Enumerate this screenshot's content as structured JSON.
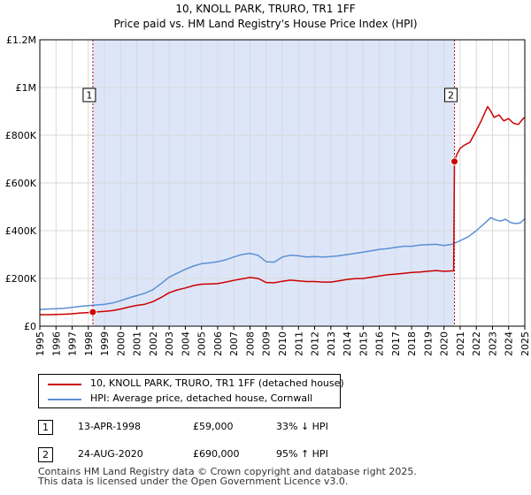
{
  "title_line1": "10, KNOLL PARK, TRURO, TR1 1FF",
  "title_line2": "Price paid vs. HM Land Registry's House Price Index (HPI)",
  "colors": {
    "property": "#cc0000",
    "hpi": "#5b8fd6",
    "shade": "#dde6f8",
    "marker_line": "#cc0000"
  },
  "chart_data": {
    "type": "line",
    "xlim": [
      1995,
      2025
    ],
    "ylim": [
      0,
      1200000
    ],
    "y_ticks": [
      {
        "value": 0,
        "label": "£0"
      },
      {
        "value": 200000,
        "label": "£200K"
      },
      {
        "value": 400000,
        "label": "£400K"
      },
      {
        "value": 600000,
        "label": "£600K"
      },
      {
        "value": 800000,
        "label": "£800K"
      },
      {
        "value": 1000000,
        "label": "£1M"
      },
      {
        "value": 1200000,
        "label": "£1.2M"
      }
    ],
    "x_ticks": [
      "1995",
      "1996",
      "1997",
      "1998",
      "1999",
      "2000",
      "2001",
      "2002",
      "2003",
      "2004",
      "2005",
      "2006",
      "2007",
      "2008",
      "2009",
      "2010",
      "2011",
      "2012",
      "2013",
      "2014",
      "2015",
      "2016",
      "2017",
      "2018",
      "2019",
      "2020",
      "2021",
      "2022",
      "2023",
      "2024",
      "2025"
    ],
    "shaded_range": [
      1998.28,
      2020.65
    ],
    "series": [
      {
        "name": "10, KNOLL PARK, TRURO, TR1 1FF (detached house)",
        "x": [
          1995.0,
          1995.5,
          1996.0,
          1996.5,
          1997.0,
          1997.5,
          1998.0,
          1998.28,
          1998.6,
          1999.0,
          1999.5,
          2000.0,
          2000.5,
          2001.0,
          2001.5,
          2002.0,
          2002.5,
          2003.0,
          2003.5,
          2004.0,
          2004.5,
          2005.0,
          2005.5,
          2006.0,
          2006.5,
          2007.0,
          2007.5,
          2008.0,
          2008.5,
          2009.0,
          2009.5,
          2010.0,
          2010.5,
          2011.0,
          2011.5,
          2012.0,
          2012.5,
          2013.0,
          2013.5,
          2014.0,
          2014.5,
          2015.0,
          2015.5,
          2016.0,
          2016.5,
          2017.0,
          2017.5,
          2018.0,
          2018.5,
          2019.0,
          2019.5,
          2020.0,
          2020.6,
          2020.65,
          2020.8,
          2021.0,
          2021.3,
          2021.6,
          2022.0,
          2022.3,
          2022.5,
          2022.7,
          2022.9,
          2023.1,
          2023.4,
          2023.7,
          2024.0,
          2024.3,
          2024.6,
          2024.9,
          2025.0
        ],
        "values": [
          48000,
          48000,
          49000,
          50000,
          52000,
          55000,
          57000,
          59000,
          60000,
          62000,
          65000,
          72000,
          80000,
          87000,
          92000,
          103000,
          120000,
          140000,
          152000,
          160000,
          170000,
          176000,
          177000,
          178000,
          185000,
          192000,
          198000,
          204000,
          200000,
          183000,
          182000,
          188000,
          193000,
          190000,
          187000,
          187000,
          185000,
          185000,
          190000,
          196000,
          199000,
          200000,
          205000,
          210000,
          215000,
          218000,
          221000,
          225000,
          227000,
          230000,
          233000,
          230000,
          232000,
          690000,
          720000,
          745000,
          760000,
          770000,
          820000,
          860000,
          890000,
          920000,
          900000,
          875000,
          885000,
          860000,
          870000,
          850000,
          845000,
          870000,
          875000
        ]
      },
      {
        "name": "HPI: Average price, detached house, Cornwall",
        "x": [
          1995.0,
          1995.5,
          1996.0,
          1996.5,
          1997.0,
          1997.5,
          1998.0,
          1998.5,
          1999.0,
          1999.5,
          2000.0,
          2000.5,
          2001.0,
          2001.5,
          2002.0,
          2002.5,
          2003.0,
          2003.5,
          2004.0,
          2004.5,
          2005.0,
          2005.5,
          2006.0,
          2006.5,
          2007.0,
          2007.5,
          2008.0,
          2008.5,
          2009.0,
          2009.5,
          2010.0,
          2010.5,
          2011.0,
          2011.5,
          2012.0,
          2012.5,
          2013.0,
          2013.5,
          2014.0,
          2014.5,
          2015.0,
          2015.5,
          2016.0,
          2016.5,
          2017.0,
          2017.5,
          2018.0,
          2018.5,
          2019.0,
          2019.5,
          2020.0,
          2020.5,
          2021.0,
          2021.5,
          2022.0,
          2022.5,
          2022.9,
          2023.2,
          2023.5,
          2023.8,
          2024.1,
          2024.4,
          2024.7,
          2025.0
        ],
        "values": [
          70000,
          72000,
          73000,
          75000,
          79000,
          83000,
          86000,
          89000,
          92000,
          97000,
          107000,
          118000,
          128000,
          138000,
          153000,
          178000,
          205000,
          222000,
          238000,
          252000,
          262000,
          265000,
          270000,
          278000,
          290000,
          300000,
          305000,
          297000,
          270000,
          268000,
          290000,
          297000,
          295000,
          290000,
          292000,
          290000,
          292000,
          295000,
          300000,
          305000,
          310000,
          316000,
          322000,
          325000,
          330000,
          335000,
          335000,
          340000,
          342000,
          343000,
          338000,
          343000,
          358000,
          375000,
          400000,
          430000,
          455000,
          445000,
          440000,
          448000,
          435000,
          430000,
          432000,
          450000
        ]
      }
    ],
    "markers": [
      {
        "label": "1",
        "x": 1998.28,
        "y": 59000
      },
      {
        "label": "2",
        "x": 2020.65,
        "y": 690000
      }
    ]
  },
  "legend": {
    "property_label": "10, KNOLL PARK, TRURO, TR1 1FF (detached house)",
    "hpi_label": "HPI: Average price, detached house, Cornwall"
  },
  "transactions": [
    {
      "num": "1",
      "date": "13-APR-1998",
      "price": "£59,000",
      "hpi": "33% ↓ HPI"
    },
    {
      "num": "2",
      "date": "24-AUG-2020",
      "price": "£690,000",
      "hpi": "95% ↑ HPI"
    }
  ],
  "footer_line1": "Contains HM Land Registry data © Crown copyright and database right 2025.",
  "footer_line2": "This data is licensed under the Open Government Licence v3.0."
}
